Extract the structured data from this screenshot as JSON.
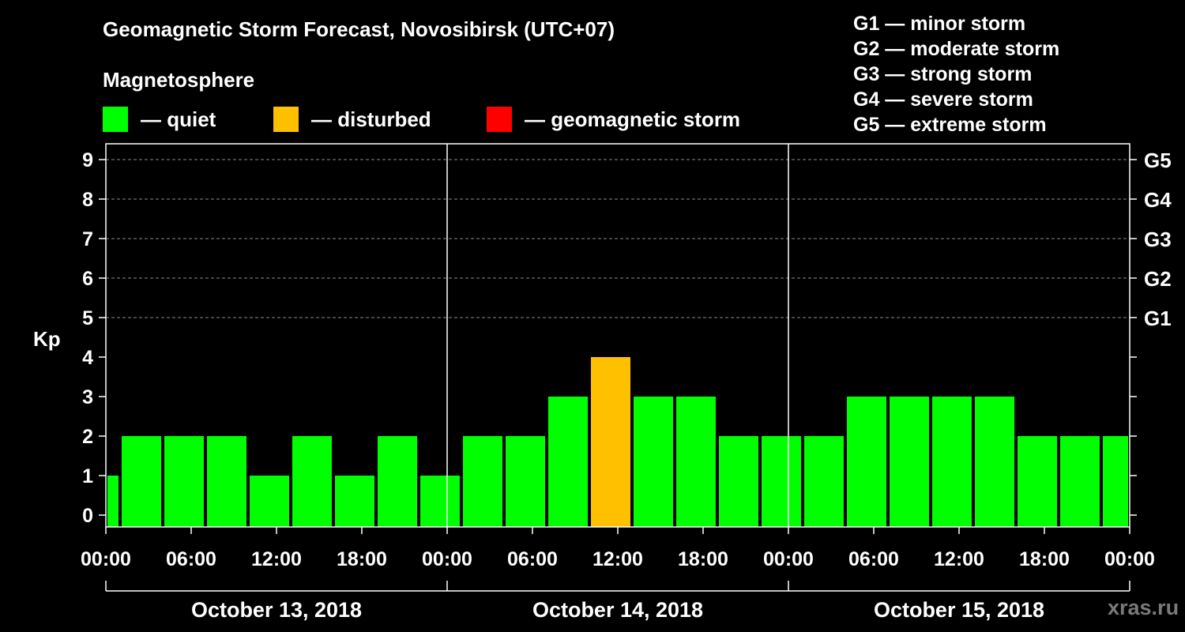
{
  "title": "Geomagnetic Storm Forecast, Novosibirsk (UTC+07)",
  "subtitle": "Magnetosphere",
  "legend": [
    {
      "label": "— quiet",
      "color": "#00ff00"
    },
    {
      "label": "— disturbed",
      "color": "#ffc000"
    },
    {
      "label": "— geomagnetic storm",
      "color": "#ff0000"
    }
  ],
  "storm_scale": [
    "G1 — minor storm",
    "G2 — moderate storm",
    "G3 — strong storm",
    "G4 — severe storm",
    "G5 — extreme storm"
  ],
  "watermark": "xras.ru",
  "chart_data": {
    "type": "bar",
    "title": "Geomagnetic Storm Forecast, Novosibirsk (UTC+07)",
    "ylabel": "Kp",
    "ylim": [
      0,
      9
    ],
    "y_ticks": [
      "0",
      "1",
      "2",
      "3",
      "4",
      "5",
      "6",
      "7",
      "8",
      "9"
    ],
    "right_ticks": [
      {
        "kp": 5,
        "label": "G1"
      },
      {
        "kp": 6,
        "label": "G2"
      },
      {
        "kp": 7,
        "label": "G3"
      },
      {
        "kp": 8,
        "label": "G4"
      },
      {
        "kp": 9,
        "label": "G5"
      }
    ],
    "x_range_hours": [
      0,
      72
    ],
    "x_ticks": [
      "00:00",
      "06:00",
      "12:00",
      "18:00",
      "00:00",
      "06:00",
      "12:00",
      "18:00",
      "00:00",
      "06:00",
      "12:00",
      "18:00",
      "00:00"
    ],
    "days": [
      "October 13, 2018",
      "October 14, 2018",
      "October 15, 2018"
    ],
    "colors": {
      "quiet": "#00ff00",
      "disturbed": "#ffc000",
      "storm": "#ff0000"
    },
    "bars": [
      {
        "start_hour": 0,
        "end_hour": 1,
        "kp": 1
      },
      {
        "start_hour": 1,
        "end_hour": 4,
        "kp": 2
      },
      {
        "start_hour": 4,
        "end_hour": 7,
        "kp": 2
      },
      {
        "start_hour": 7,
        "end_hour": 10,
        "kp": 2
      },
      {
        "start_hour": 10,
        "end_hour": 13,
        "kp": 1
      },
      {
        "start_hour": 13,
        "end_hour": 16,
        "kp": 2
      },
      {
        "start_hour": 16,
        "end_hour": 19,
        "kp": 1
      },
      {
        "start_hour": 19,
        "end_hour": 22,
        "kp": 2
      },
      {
        "start_hour": 22,
        "end_hour": 25,
        "kp": 1
      },
      {
        "start_hour": 25,
        "end_hour": 28,
        "kp": 2
      },
      {
        "start_hour": 28,
        "end_hour": 31,
        "kp": 2
      },
      {
        "start_hour": 31,
        "end_hour": 34,
        "kp": 3
      },
      {
        "start_hour": 34,
        "end_hour": 37,
        "kp": 4
      },
      {
        "start_hour": 37,
        "end_hour": 40,
        "kp": 3
      },
      {
        "start_hour": 40,
        "end_hour": 43,
        "kp": 3
      },
      {
        "start_hour": 43,
        "end_hour": 46,
        "kp": 2
      },
      {
        "start_hour": 46,
        "end_hour": 49,
        "kp": 2
      },
      {
        "start_hour": 49,
        "end_hour": 52,
        "kp": 2
      },
      {
        "start_hour": 52,
        "end_hour": 55,
        "kp": 3
      },
      {
        "start_hour": 55,
        "end_hour": 58,
        "kp": 3
      },
      {
        "start_hour": 58,
        "end_hour": 61,
        "kp": 3
      },
      {
        "start_hour": 61,
        "end_hour": 64,
        "kp": 3
      },
      {
        "start_hour": 64,
        "end_hour": 67,
        "kp": 2
      },
      {
        "start_hour": 67,
        "end_hour": 70,
        "kp": 2
      },
      {
        "start_hour": 70,
        "end_hour": 72,
        "kp": 2
      }
    ]
  }
}
